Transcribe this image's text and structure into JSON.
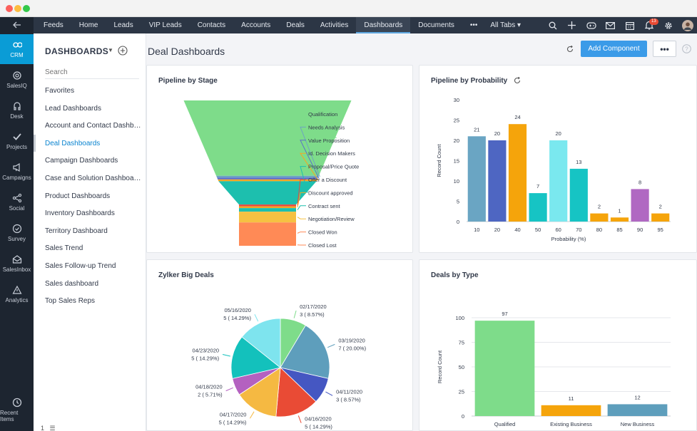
{
  "rail": {
    "items": [
      {
        "label": "CRM",
        "icon": "crm-icon"
      },
      {
        "label": "SalesIQ",
        "icon": "salesiq-icon"
      },
      {
        "label": "Desk",
        "icon": "desk-icon"
      },
      {
        "label": "Projects",
        "icon": "projects-icon"
      },
      {
        "label": "Campaigns",
        "icon": "campaigns-icon"
      },
      {
        "label": "Social",
        "icon": "social-icon"
      },
      {
        "label": "Survey",
        "icon": "survey-icon"
      },
      {
        "label": "SalesInbox",
        "icon": "salesinbox-icon"
      },
      {
        "label": "Analytics",
        "icon": "analytics-icon"
      }
    ],
    "recent_items": "Recent Items"
  },
  "nav": {
    "tabs": [
      "Feeds",
      "Home",
      "Leads",
      "VIP Leads",
      "Contacts",
      "Accounts",
      "Deals",
      "Activities",
      "Dashboards",
      "Documents",
      "•••"
    ],
    "active_tab": "Dashboards",
    "all_tabs": "All Tabs ▾",
    "notification_count": "13",
    "accent": "#2c3645"
  },
  "sidebar": {
    "title": "DASHBOARDS",
    "search_placeholder": "Search",
    "items": [
      "Favorites",
      "Lead Dashboards",
      "Account and Contact Dashboards",
      "Deal Dashboards",
      "Campaign Dashboards",
      "Case and Solution Dashboards",
      "Product Dashboards",
      "Inventory Dashboards",
      "Territory Dashboard",
      "Sales Trend",
      "Sales Follow-up Trend",
      "Sales dashboard",
      "Top Sales Reps"
    ],
    "active_item": "Deal Dashboards"
  },
  "main": {
    "title": "Deal Dashboards",
    "add_button": "Add Component",
    "more_button": "•••"
  },
  "cards": {
    "funnel_title": "Pipeline by Stage",
    "probability_title": "Pipeline by Probability",
    "pie_title": "Zylker Big Deals",
    "type_title": "Deals by Type"
  },
  "chart_data": [
    {
      "type": "funnel",
      "title": "Pipeline by Stage",
      "stages": [
        "Qualification",
        "Needs Analysis",
        "Value Proposition",
        "Id. Decision Makers",
        "Proposal/Price Quote",
        "Offer a Discount",
        "Discount approved",
        "Contract sent",
        "Negotiation/Review",
        "Closed Won",
        "Closed Lost"
      ],
      "values": [
        42,
        1,
        1,
        1,
        13,
        1,
        1,
        2,
        6,
        12,
        1
      ],
      "colors": [
        "#7edc8a",
        "#6da3c1",
        "#5b6fc9",
        "#f5a623",
        "#1dbfae",
        "#e9473d",
        "#f5a623",
        "#1dbfae",
        "#f5c142",
        "#ff8a56",
        "#ff8a56"
      ]
    },
    {
      "type": "bar",
      "title": "Pipeline by Probability",
      "xlabel": "Probability (%)",
      "ylabel": "Record Count",
      "categories": [
        "10",
        "20",
        "40",
        "50",
        "60",
        "70",
        "80",
        "85",
        "90",
        "95"
      ],
      "values": [
        21,
        20,
        24,
        7,
        20,
        13,
        2,
        1,
        8,
        2
      ],
      "colors": [
        "#6aa5c3",
        "#4e66c2",
        "#f5a40b",
        "#16c4c4",
        "#7ae8ef",
        "#16c4c4",
        "#f5a40b",
        "#f5a40b",
        "#b068c2",
        "#f5a40b"
      ],
      "ylim": [
        0,
        30
      ],
      "yticks": [
        0,
        5,
        10,
        15,
        20,
        25,
        30
      ],
      "grid": false
    },
    {
      "type": "pie",
      "title": "Zylker Big Deals",
      "slices": [
        {
          "label": "02/17/2020",
          "value": 3,
          "pct": "8.57%",
          "color": "#7edc8a"
        },
        {
          "label": "03/19/2020",
          "value": 7,
          "pct": "20.00%",
          "color": "#5e9ebc"
        },
        {
          "label": "04/11/2020",
          "value": 3,
          "pct": "8.57%",
          "color": "#4557c2"
        },
        {
          "label": "04/16/2020",
          "value": 5,
          "pct": "14.29%",
          "color": "#e94b35"
        },
        {
          "label": "04/17/2020",
          "value": 5,
          "pct": "14.29%",
          "color": "#f5b942"
        },
        {
          "label": "04/18/2020",
          "value": 2,
          "pct": "5.71%",
          "color": "#b461c0"
        },
        {
          "label": "04/23/2020",
          "value": 5,
          "pct": "14.29%",
          "color": "#13c1bc"
        },
        {
          "label": "05/16/2020",
          "value": 5,
          "pct": "14.29%",
          "color": "#7ee4ee"
        }
      ]
    },
    {
      "type": "bar",
      "title": "Deals by Type",
      "ylabel": "Record Count",
      "categories": [
        "Qualified",
        "Existing Business",
        "New Business"
      ],
      "values": [
        97,
        11,
        12
      ],
      "colors": [
        "#7edc8a",
        "#f5a40b",
        "#5e9ebc"
      ],
      "ylim": [
        0,
        100
      ],
      "yticks": [
        0,
        25,
        50,
        75,
        100
      ],
      "grid": true
    }
  ]
}
